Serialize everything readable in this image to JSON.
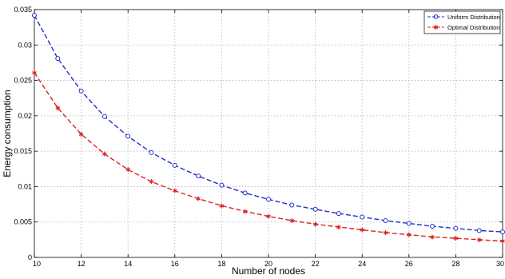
{
  "chart_data": {
    "type": "line",
    "title": "",
    "xlabel": "Number of nodes",
    "ylabel": "Energy consumption",
    "xlim": [
      10,
      30
    ],
    "ylim": [
      0,
      0.035
    ],
    "x_ticks": [
      10,
      12,
      14,
      16,
      18,
      20,
      22,
      24,
      26,
      28,
      30
    ],
    "y_ticks": [
      0,
      0.005,
      0.01,
      0.015,
      0.02,
      0.025,
      0.03,
      0.035
    ],
    "grid": true,
    "legend_position": "top-right",
    "x": [
      10,
      11,
      12,
      13,
      14,
      15,
      16,
      17,
      18,
      19,
      20,
      21,
      22,
      23,
      24,
      25,
      26,
      27,
      28,
      29,
      30
    ],
    "series": [
      {
        "name": "Uniform Distribution",
        "color": "#1f2dcc",
        "marker": "circle",
        "line_style": "dashed",
        "values": [
          0.0342,
          0.0281,
          0.0235,
          0.0199,
          0.0171,
          0.0148,
          0.013,
          0.0115,
          0.0102,
          0.0091,
          0.0082,
          0.0074,
          0.0068,
          0.0062,
          0.0057,
          0.0052,
          0.0048,
          0.0044,
          0.0041,
          0.0038,
          0.0036
        ]
      },
      {
        "name": "Optimal Distribution",
        "color": "#dd2222",
        "marker": "star",
        "line_style": "dashed",
        "values": [
          0.0261,
          0.0211,
          0.0174,
          0.0146,
          0.0124,
          0.0107,
          0.0094,
          0.0083,
          0.0073,
          0.0065,
          0.0058,
          0.0052,
          0.0047,
          0.0043,
          0.0039,
          0.0035,
          0.0032,
          0.0029,
          0.0027,
          0.0025,
          0.0023
        ]
      }
    ]
  }
}
